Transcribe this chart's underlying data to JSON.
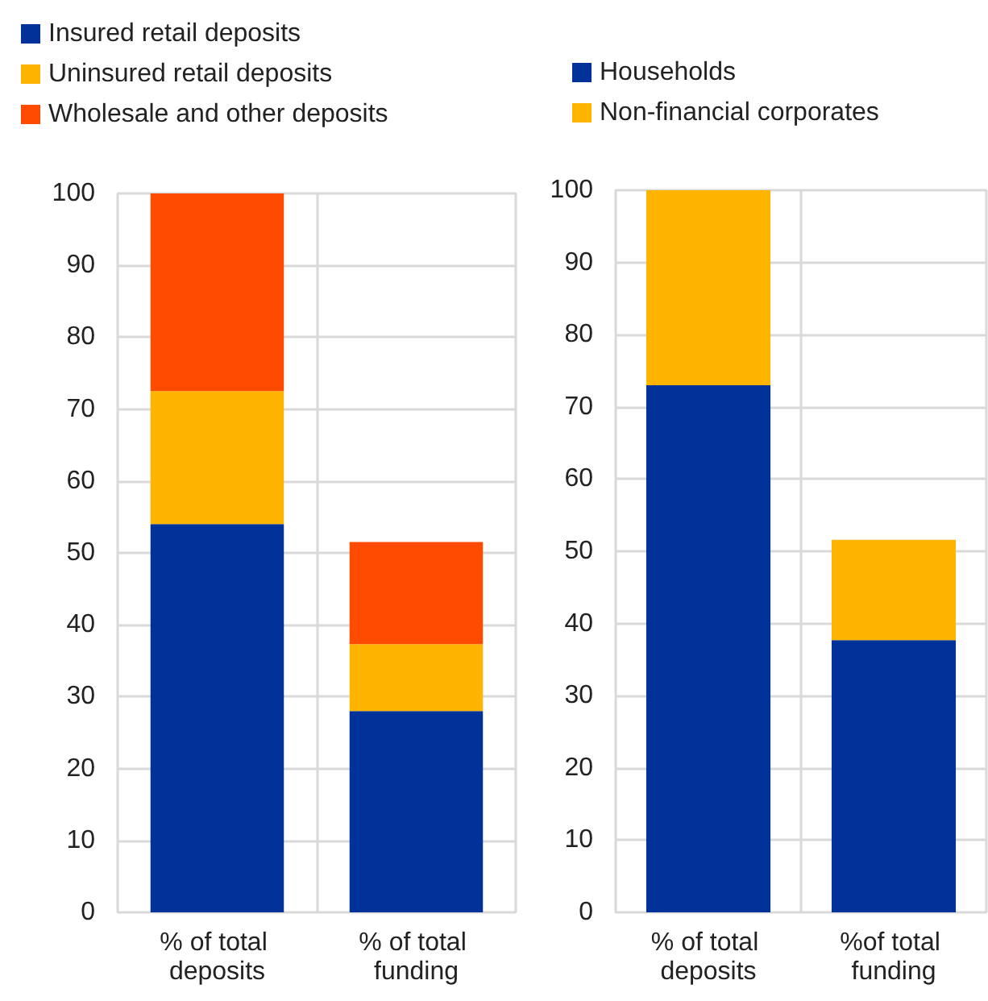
{
  "chart_data": [
    {
      "type": "bar",
      "stacked": true,
      "categories": [
        "% of total deposits",
        "% of total funding"
      ],
      "series": [
        {
          "name": "Insured retail deposits",
          "color": "#003299",
          "values": [
            54,
            28
          ]
        },
        {
          "name": "Uninsured retail deposits",
          "color": "#ffb400",
          "values": [
            18.5,
            9.3
          ]
        },
        {
          "name": "Wholesale and other deposits",
          "color": "#ff4b00",
          "values": [
            27.5,
            14.2
          ]
        }
      ],
      "ylim": [
        0,
        100
      ],
      "yticks": [
        0,
        10,
        20,
        30,
        40,
        50,
        60,
        70,
        80,
        90,
        100
      ],
      "grid": true,
      "legend": "top left"
    },
    {
      "type": "bar",
      "stacked": true,
      "categories": [
        "% of total deposits",
        "%of total funding"
      ],
      "series": [
        {
          "name": "Households",
          "color": "#003299",
          "values": [
            73,
            37.7
          ]
        },
        {
          "name": "Non-financial corporates",
          "color": "#ffb400",
          "values": [
            27,
            13.9
          ]
        }
      ],
      "ylim": [
        0,
        100
      ],
      "yticks": [
        0,
        10,
        20,
        30,
        40,
        50,
        60,
        70,
        80,
        90,
        100
      ],
      "grid": true,
      "legend": "top"
    }
  ]
}
